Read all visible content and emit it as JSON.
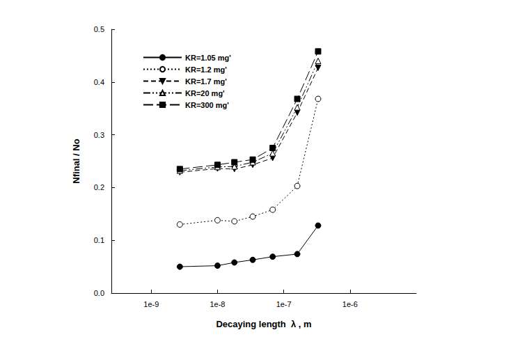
{
  "chart_data": {
    "type": "line",
    "x_label": "Decaying length  λ , m",
    "y_label": "Nfinal / No",
    "log": "x",
    "grid": false,
    "legend": "upper left",
    "xlim": [
      2.5e-10,
      1e-05
    ],
    "xticks": [
      {
        "value": 1e-09,
        "label": "1e-9"
      },
      {
        "value": 1e-08,
        "label": "1e-8"
      },
      {
        "value": 1e-07,
        "label": "1e-7"
      },
      {
        "value": 1e-06,
        "label": "1e-6"
      }
    ],
    "ylim": [
      0,
      0.5
    ],
    "yticks": [
      {
        "value": 0,
        "label": "0.0"
      },
      0.1,
      0.2,
      0.3,
      0.4,
      0.5
    ],
    "x": [
      2.7e-09,
      1e-08,
      1.8e-08,
      3.4e-08,
      6.8e-08,
      1.6e-07,
      3.3e-07
    ],
    "series": [
      {
        "name": "KR=1.05 mg'",
        "color": "#000000",
        "marker": "circle",
        "line_style": "solid",
        "values": [
          0.05,
          0.052,
          0.058,
          0.063,
          0.069,
          0.074,
          0.128
        ]
      },
      {
        "name": "KR=1.2 mg'",
        "color": "#000000",
        "marker": "circle-open",
        "line_style": "dotted",
        "values": [
          0.13,
          0.138,
          0.136,
          0.145,
          0.158,
          0.203,
          0.368
        ]
      },
      {
        "name": "KR=1.7 mg'",
        "color": "#000000",
        "marker": "triangle-down",
        "line_style": "dashed",
        "values": [
          0.229,
          0.236,
          0.235,
          0.243,
          0.256,
          0.342,
          0.427
        ]
      },
      {
        "name": "KR=20 mg'",
        "color": "#000000",
        "marker": "triangle-open",
        "line_style": "dash-dot-dot",
        "values": [
          0.232,
          0.239,
          0.24,
          0.248,
          0.265,
          0.352,
          0.44
        ]
      },
      {
        "name": "KR=300 mg'",
        "color": "#000000",
        "marker": "square",
        "line_style": "long-dash",
        "values": [
          0.235,
          0.243,
          0.248,
          0.253,
          0.275,
          0.368,
          0.458
        ]
      }
    ]
  }
}
